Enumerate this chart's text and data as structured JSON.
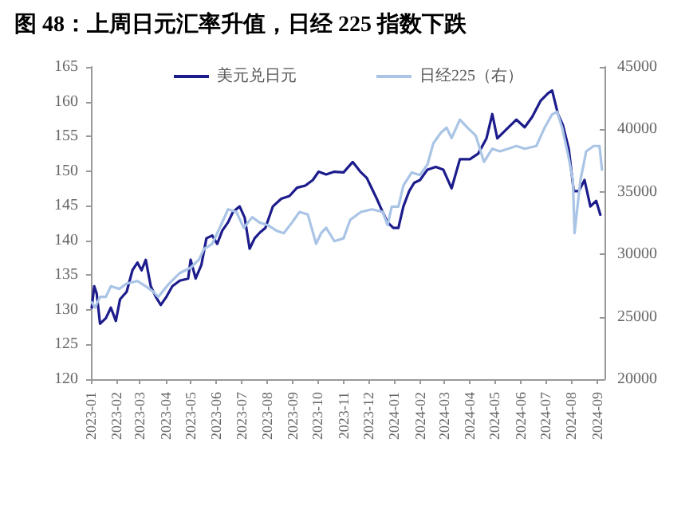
{
  "chart_data": {
    "type": "line",
    "title": "图 48：上周日元汇率升值，日经 225 指数下跌",
    "xlim": [
      "2023-01-01",
      "2024-09-10"
    ],
    "xticks": [
      {
        "value": "2023-01-01",
        "label": "2023-01"
      },
      {
        "value": "2023-02-01",
        "label": "2023-02"
      },
      {
        "value": "2023-03-01",
        "label": "2023-03"
      },
      {
        "value": "2023-04-01",
        "label": "2023-04"
      },
      {
        "value": "2023-05-01",
        "label": "2023-05"
      },
      {
        "value": "2023-06-01",
        "label": "2023-06"
      },
      {
        "value": "2023-07-01",
        "label": "2023-07"
      },
      {
        "value": "2023-08-01",
        "label": "2023-08"
      },
      {
        "value": "2023-09-01",
        "label": "2023-09"
      },
      {
        "value": "2023-10-01",
        "label": "2023-10"
      },
      {
        "value": "2023-11-01",
        "label": "2023-11"
      },
      {
        "value": "2023-12-01",
        "label": "2023-12"
      },
      {
        "value": "2024-01-01",
        "label": "2024-01"
      },
      {
        "value": "2024-02-01",
        "label": "2024-02"
      },
      {
        "value": "2024-03-01",
        "label": "2024-03"
      },
      {
        "value": "2024-04-01",
        "label": "2024-04"
      },
      {
        "value": "2024-05-01",
        "label": "2024-05"
      },
      {
        "value": "2024-06-01",
        "label": "2024-06"
      },
      {
        "value": "2024-07-01",
        "label": "2024-07"
      },
      {
        "value": "2024-08-01",
        "label": "2024-08"
      },
      {
        "value": "2024-09-01",
        "label": "2024-09"
      }
    ],
    "ylim": [
      120,
      165
    ],
    "yticks": [
      120,
      125,
      130,
      135,
      140,
      145,
      150,
      155,
      160,
      165
    ],
    "y2lim": [
      20000,
      45000
    ],
    "y2ticks": [
      20000,
      25000,
      30000,
      35000,
      40000,
      45000
    ],
    "grid": false,
    "legend": "top",
    "marker": "none",
    "line_style": "solid",
    "series": [
      {
        "name": "美元兑日元",
        "color": "#1c1c8c",
        "x": [
          "2023-01-02",
          "2023-01-05",
          "2023-01-08",
          "2023-01-12",
          "2023-01-19",
          "2023-01-25",
          "2023-01-31",
          "2023-02-05",
          "2023-02-13",
          "2023-02-20",
          "2023-02-26",
          "2023-03-03",
          "2023-03-08",
          "2023-03-14",
          "2023-03-20",
          "2023-03-26",
          "2023-04-02",
          "2023-04-09",
          "2023-04-18",
          "2023-04-28",
          "2023-05-01",
          "2023-05-07",
          "2023-05-14",
          "2023-05-20",
          "2023-05-27",
          "2023-06-02",
          "2023-06-08",
          "2023-06-15",
          "2023-06-21",
          "2023-06-29",
          "2023-07-05",
          "2023-07-11",
          "2023-07-17",
          "2023-07-23",
          "2023-07-30",
          "2023-08-08",
          "2023-08-18",
          "2023-08-28",
          "2023-09-06",
          "2023-09-16",
          "2023-09-25",
          "2023-10-02",
          "2023-10-11",
          "2023-10-21",
          "2023-11-01",
          "2023-11-12",
          "2023-11-22",
          "2023-11-29",
          "2023-12-05",
          "2023-12-11",
          "2023-12-18",
          "2023-12-24",
          "2023-12-31",
          "2024-01-06",
          "2024-01-12",
          "2024-01-19",
          "2024-01-25",
          "2024-02-01",
          "2024-02-10",
          "2024-02-20",
          "2024-02-29",
          "2024-03-10",
          "2024-03-20",
          "2024-04-01",
          "2024-04-11",
          "2024-04-21",
          "2024-04-28",
          "2024-05-04",
          "2024-05-14",
          "2024-05-27",
          "2024-06-06",
          "2024-06-15",
          "2024-06-25",
          "2024-07-04",
          "2024-07-09",
          "2024-07-16",
          "2024-07-22",
          "2024-07-29",
          "2024-08-04",
          "2024-08-10",
          "2024-08-17",
          "2024-08-24",
          "2024-08-31",
          "2024-09-05"
        ],
        "values": [
          130.3,
          133.4,
          132.3,
          128,
          128.8,
          130.3,
          128.4,
          131.5,
          132.6,
          135.7,
          136.8,
          135.7,
          137.2,
          133.4,
          131.9,
          130.7,
          131.9,
          133.4,
          134.2,
          134.5,
          137.2,
          134.5,
          136.5,
          140.3,
          140.7,
          139.5,
          141.4,
          142.6,
          144.1,
          144.9,
          143.3,
          138.8,
          140.3,
          141.1,
          141.8,
          144.9,
          146,
          146.4,
          147.6,
          147.9,
          148.7,
          149.9,
          149.5,
          149.9,
          149.8,
          151.3,
          149.8,
          149,
          147.5,
          146,
          144.1,
          142.6,
          141.8,
          141.8,
          144.9,
          147.1,
          148.3,
          148.7,
          150.2,
          150.6,
          150.2,
          147.5,
          151.7,
          151.7,
          152.5,
          154.7,
          158.2,
          154.7,
          155.9,
          157.4,
          156.3,
          157.8,
          160.1,
          161.2,
          161.6,
          158.2,
          156.6,
          153.2,
          147.1,
          147.1,
          148.7,
          144.9,
          145.7,
          143.7
        ]
      },
      {
        "name": "日经225（右）",
        "color": "#aac4e6",
        "axis": "y2",
        "x": [
          "2023-01-02",
          "2023-01-06",
          "2023-01-12",
          "2023-01-19",
          "2023-01-25",
          "2023-02-04",
          "2023-02-13",
          "2023-02-26",
          "2023-03-08",
          "2023-03-17",
          "2023-03-23",
          "2023-04-05",
          "2023-04-18",
          "2023-05-01",
          "2023-05-11",
          "2023-05-17",
          "2023-05-27",
          "2023-06-05",
          "2023-06-15",
          "2023-06-25",
          "2023-07-04",
          "2023-07-14",
          "2023-07-23",
          "2023-08-02",
          "2023-08-12",
          "2023-08-21",
          "2023-08-31",
          "2023-09-09",
          "2023-09-19",
          "2023-09-29",
          "2023-10-05",
          "2023-10-11",
          "2023-10-21",
          "2023-11-01",
          "2023-11-09",
          "2023-11-22",
          "2023-12-05",
          "2023-12-18",
          "2023-12-24",
          "2023-12-29",
          "2024-01-06",
          "2024-01-12",
          "2024-01-22",
          "2024-02-01",
          "2024-02-10",
          "2024-02-17",
          "2024-02-26",
          "2024-03-04",
          "2024-03-10",
          "2024-03-20",
          "2024-03-29",
          "2024-04-08",
          "2024-04-18",
          "2024-04-28",
          "2024-05-07",
          "2024-05-17",
          "2024-05-27",
          "2024-06-06",
          "2024-06-20",
          "2024-06-30",
          "2024-07-09",
          "2024-07-15",
          "2024-07-21",
          "2024-07-28",
          "2024-08-03",
          "2024-08-05",
          "2024-08-12",
          "2024-08-19",
          "2024-08-28",
          "2024-09-04",
          "2024-09-07"
        ],
        "values": [
          26160,
          25740,
          26590,
          26590,
          27440,
          27230,
          27650,
          27860,
          27440,
          27010,
          26590,
          27650,
          28500,
          28930,
          29570,
          30420,
          30840,
          32120,
          33600,
          33390,
          32120,
          32970,
          32540,
          32330,
          31900,
          31690,
          32540,
          33390,
          33180,
          30840,
          31690,
          32120,
          31050,
          31280,
          32750,
          33390,
          33600,
          33390,
          32330,
          33810,
          33810,
          35500,
          36550,
          36340,
          37190,
          38880,
          39720,
          40140,
          39300,
          40780,
          40140,
          39510,
          37400,
          38450,
          38240,
          38450,
          38670,
          38450,
          38670,
          40140,
          41200,
          41410,
          40140,
          38030,
          35920,
          31700,
          35920,
          38240,
          38670,
          38670,
          36760
        ]
      }
    ]
  }
}
